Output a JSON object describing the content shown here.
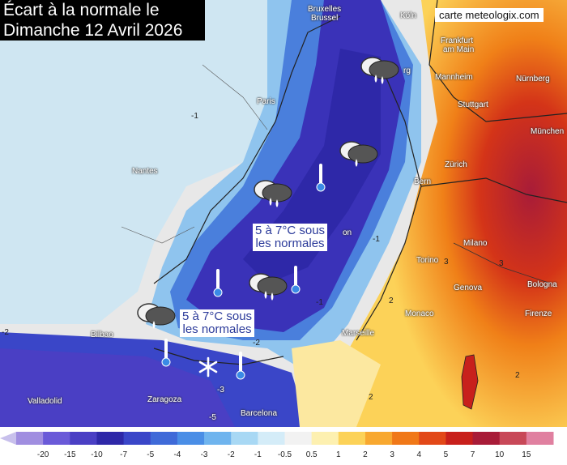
{
  "title": {
    "line1": "Écart à la normale le",
    "line2": "Dimanche 12 Avril 2026"
  },
  "credit": "carte meteologix.com",
  "cities": [
    {
      "name": "Bruxelles\nBrussel",
      "label": "Bruxelles"
    },
    {
      "name": "Brussel"
    },
    {
      "name": "Köln"
    },
    {
      "name": "Frankfurt"
    },
    {
      "name": "am Main"
    },
    {
      "name": "Mannheim"
    },
    {
      "name": "Nürnberg"
    },
    {
      "name": "Paris"
    },
    {
      "name": "Stuttgart"
    },
    {
      "name": "München"
    },
    {
      "name": "Nantes"
    },
    {
      "name": "Zürich"
    },
    {
      "name": "Bern"
    },
    {
      "name": "Milano"
    },
    {
      "name": "Torino"
    },
    {
      "name": "Genova"
    },
    {
      "name": "Bologna"
    },
    {
      "name": "Monaco"
    },
    {
      "name": "Firenze"
    },
    {
      "name": "Bilbao"
    },
    {
      "name": "Marseille"
    },
    {
      "name": "Valladolid"
    },
    {
      "name": "Zaragoza"
    },
    {
      "name": "Barcelona"
    },
    {
      "name": "rg"
    },
    {
      "name": "on"
    }
  ],
  "annotations": [
    {
      "line1": "5 à 7°C sous",
      "line2": "les normales"
    },
    {
      "line1": "5 à 7°C sous",
      "line2": "les normales"
    }
  ],
  "contour_labels": [
    "-1",
    "-1",
    "-2",
    "-2",
    "-1",
    "3",
    "3",
    "2",
    "2",
    "2",
    "-3",
    "-5"
  ],
  "icons": [
    "rain-cloud-icon",
    "thermometer-cold-icon",
    "snowflake-icon"
  ],
  "legend": {
    "ticks": [
      "-20",
      "-15",
      "-10",
      "-7",
      "-5",
      "-4",
      "-3",
      "-2",
      "-1",
      "-0.5",
      "0.5",
      "1",
      "2",
      "3",
      "4",
      "5",
      "7",
      "10",
      "15"
    ],
    "colors": [
      "#a08ee0",
      "#6a5ad8",
      "#4a3fc4",
      "#2e28a8",
      "#3a46c8",
      "#3f6ad8",
      "#4a8ee6",
      "#6fb4ee",
      "#a8d8f4",
      "#d4ecf8",
      "#f2f2f2",
      "#fdf0b0",
      "#fcd258",
      "#f8a830",
      "#f07818",
      "#e24818",
      "#c8201c",
      "#a81c38",
      "#c84858",
      "#e080a0"
    ]
  }
}
